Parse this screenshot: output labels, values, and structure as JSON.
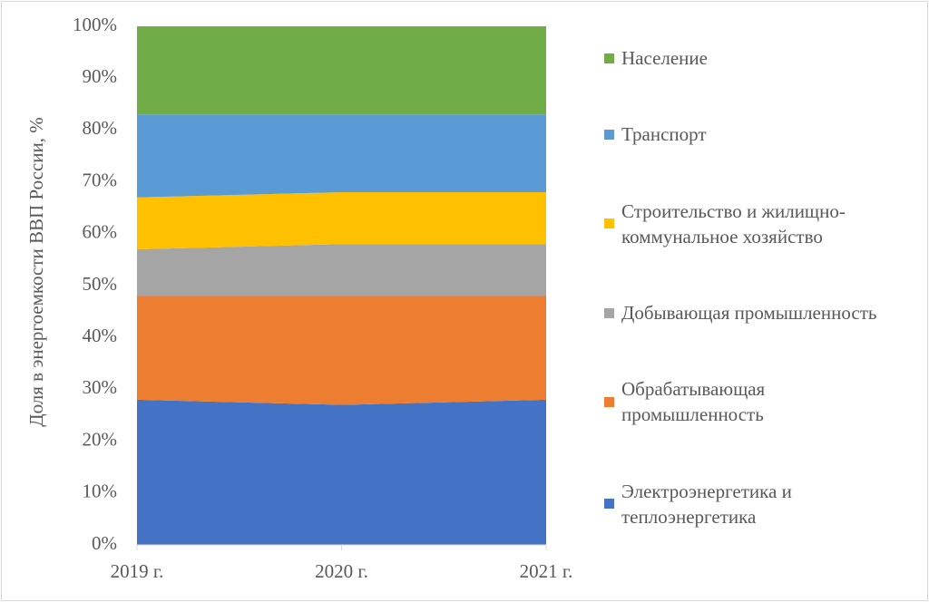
{
  "chart_data": {
    "type": "area",
    "stacked": true,
    "y_label": "Доля в энергоемкости ВВП России, %",
    "categories": [
      "2019 г.",
      "2020 г.",
      "2021 г."
    ],
    "series": [
      {
        "name": "Электроэнергетика и теплоэнергетика",
        "color": "#4472c4",
        "values": [
          28,
          27,
          28
        ]
      },
      {
        "name": "Обрабатывающая промышленность",
        "color": "#ed7d31",
        "values": [
          20,
          21,
          20
        ]
      },
      {
        "name": "Добывающая промышленность",
        "color": "#a5a5a5",
        "values": [
          9,
          10,
          10
        ]
      },
      {
        "name": "Строительство и жилищно-коммунальное хозяйство",
        "color": "#ffc000",
        "values": [
          10,
          10,
          10
        ]
      },
      {
        "name": "Транспорт",
        "color": "#5b9bd5",
        "values": [
          16,
          15,
          15
        ]
      },
      {
        "name": "Население",
        "color": "#70ad47",
        "values": [
          17,
          17,
          17
        ]
      }
    ],
    "ylim": [
      0,
      100
    ],
    "yticks": [
      {
        "value": 0,
        "label": "0%"
      },
      {
        "value": 10,
        "label": "10%"
      },
      {
        "value": 20,
        "label": "20%"
      },
      {
        "value": 30,
        "label": "30%"
      },
      {
        "value": 40,
        "label": "40%"
      },
      {
        "value": 50,
        "label": "50%"
      },
      {
        "value": 60,
        "label": "60%"
      },
      {
        "value": 70,
        "label": "70%"
      },
      {
        "value": 80,
        "label": "80%"
      },
      {
        "value": 90,
        "label": "90%"
      },
      {
        "value": 100,
        "label": "100%"
      }
    ],
    "legend": "right",
    "grid": false
  }
}
